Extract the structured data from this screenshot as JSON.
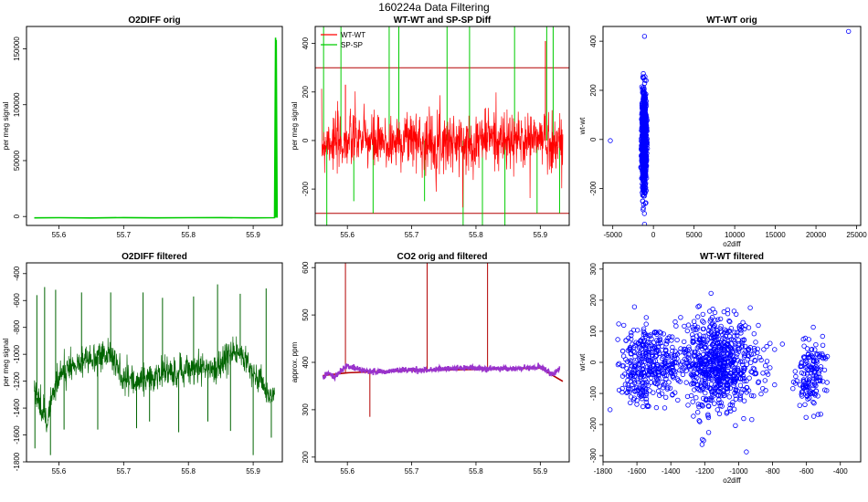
{
  "page_title": "160224a   Data Filtering",
  "colors": {
    "green": "#00cc00",
    "red": "#ff0000",
    "darkred": "#b30000",
    "darkgreen": "#006400",
    "purple": "#9933cc",
    "blue": "#0000ff",
    "black": "#000000"
  },
  "chart_data": [
    {
      "id": "p1",
      "type": "line",
      "title": "O2DIFF orig",
      "xlabel": "",
      "ylabel": "per meg signal",
      "xlim": [
        55.55,
        55.945
      ],
      "ylim": [
        -8000,
        170000
      ],
      "xticks": [
        55.6,
        55.7,
        55.8,
        55.9
      ],
      "yticks": [
        0,
        50000,
        100000,
        150000
      ],
      "series": [
        {
          "color": "green",
          "x": [
            55.562,
            55.6,
            55.65,
            55.7,
            55.75,
            55.8,
            55.85,
            55.9,
            55.933,
            55.9345,
            55.935,
            55.9355,
            55.937
          ],
          "y": [
            -1200,
            -1100,
            -1300,
            -1000,
            -1200,
            -1100,
            -1000,
            -1200,
            -1100,
            160000,
            -1000,
            158000,
            -1100
          ]
        }
      ]
    },
    {
      "id": "p2",
      "type": "line",
      "title": "WT-WT and SP-SP Diff",
      "xlabel": "",
      "ylabel": "per meg signal",
      "xlim": [
        55.55,
        55.945
      ],
      "ylim": [
        -350,
        470
      ],
      "xticks": [
        55.6,
        55.7,
        55.8,
        55.9
      ],
      "yticks": [
        -200,
        0,
        200,
        400
      ],
      "hlines": [
        300,
        -300
      ],
      "legend": {
        "position": "top-left",
        "entries": [
          {
            "name": "WT-WT",
            "color": "red"
          },
          {
            "name": "SP-SP",
            "color": "green"
          }
        ]
      },
      "series": [
        {
          "name": "SP-SP",
          "color": "green",
          "spikes": [
            {
              "x": 55.563,
              "y": 470
            },
            {
              "x": 55.568,
              "y": -350
            },
            {
              "x": 55.59,
              "y": 470
            },
            {
              "x": 55.61,
              "y": -250
            },
            {
              "x": 55.64,
              "y": -300
            },
            {
              "x": 55.665,
              "y": 470
            },
            {
              "x": 55.68,
              "y": 470
            },
            {
              "x": 55.72,
              "y": -250
            },
            {
              "x": 55.755,
              "y": 470
            },
            {
              "x": 55.78,
              "y": -350
            },
            {
              "x": 55.79,
              "y": 470
            },
            {
              "x": 55.81,
              "y": -350
            },
            {
              "x": 55.845,
              "y": -350
            },
            {
              "x": 55.86,
              "y": 470
            },
            {
              "x": 55.895,
              "y": -300
            },
            {
              "x": 55.91,
              "y": 470
            },
            {
              "x": 55.92,
              "y": 470
            },
            {
              "x": 55.93,
              "y": -300
            }
          ]
        },
        {
          "name": "WT-WT",
          "color": "red",
          "x": [
            55.56,
            55.565,
            55.57,
            55.575,
            55.58,
            55.6,
            55.62,
            55.65,
            55.68,
            55.7,
            55.72,
            55.75,
            55.78,
            55.8,
            55.82,
            55.85,
            55.88,
            55.9,
            55.92,
            55.935
          ],
          "y": [
            -20,
            -10,
            10,
            0,
            -15,
            -5,
            10,
            -20,
            0,
            15,
            -10,
            5,
            -20,
            0,
            20,
            -10,
            5,
            10,
            -15,
            -5
          ],
          "noise": 60,
          "spikes": [
            {
              "x": 55.597,
              "y": 230
            },
            {
              "x": 55.908,
              "y": 410
            }
          ]
        }
      ]
    },
    {
      "id": "p3",
      "type": "scatter",
      "title": "WT-WT orig",
      "xlabel": "o2diff",
      "ylabel": "wt-wt",
      "xlim": [
        -6200,
        25500
      ],
      "ylim": [
        -350,
        460
      ],
      "xticks": [
        -5000,
        0,
        5000,
        10000,
        15000,
        20000,
        25000
      ],
      "yticks": [
        -200,
        0,
        200,
        400
      ],
      "series": [
        {
          "color": "blue",
          "cluster": {
            "x": [
              -1500,
              -800
            ],
            "y": [
              -240,
              220
            ],
            "count": 1100
          },
          "points": [
            {
              "x": -5300,
              "y": -5
            },
            {
              "x": 24000,
              "y": 440
            },
            {
              "x": -1100,
              "y": 420
            },
            {
              "x": -1100,
              "y": -345
            },
            {
              "x": -1300,
              "y": 255
            },
            {
              "x": -1000,
              "y": -260
            },
            {
              "x": -1200,
              "y": -230
            },
            {
              "x": -900,
              "y": 240
            }
          ]
        }
      ]
    },
    {
      "id": "p4",
      "type": "line",
      "title": "O2DIFF filtered",
      "xlabel": "",
      "ylabel": "per meg signal",
      "xlim": [
        55.55,
        55.945
      ],
      "ylim": [
        -1800,
        -320
      ],
      "xticks": [
        55.6,
        55.7,
        55.8,
        55.9
      ],
      "yticks": [
        -1800,
        -1600,
        -1400,
        -1200,
        -1000,
        -800,
        -600,
        -400
      ],
      "series": [
        {
          "color": "darkgreen",
          "x": [
            55.562,
            55.57,
            55.58,
            55.59,
            55.6,
            55.62,
            55.64,
            55.66,
            55.68,
            55.69,
            55.7,
            55.72,
            55.74,
            55.76,
            55.78,
            55.8,
            55.82,
            55.84,
            55.86,
            55.88,
            55.9,
            55.915,
            55.925,
            55.933
          ],
          "y": [
            -1260,
            -1350,
            -1500,
            -1300,
            -1150,
            -1080,
            -1050,
            -1020,
            -1000,
            -1100,
            -1180,
            -1200,
            -1170,
            -1130,
            -1140,
            -1120,
            -1090,
            -1130,
            -1000,
            -980,
            -1150,
            -1200,
            -1350,
            -1300
          ],
          "noise": 55,
          "spikes": [
            {
              "x": 55.563,
              "y": -1700
            },
            {
              "x": 55.566,
              "y": -560
            },
            {
              "x": 55.578,
              "y": -500
            },
            {
              "x": 55.587,
              "y": -1750
            },
            {
              "x": 55.595,
              "y": -520
            },
            {
              "x": 55.608,
              "y": -1560
            },
            {
              "x": 55.635,
              "y": -540
            },
            {
              "x": 55.66,
              "y": -1560
            },
            {
              "x": 55.68,
              "y": -540
            },
            {
              "x": 55.72,
              "y": -1550
            },
            {
              "x": 55.73,
              "y": -540
            },
            {
              "x": 55.74,
              "y": -1500
            },
            {
              "x": 55.76,
              "y": -580
            },
            {
              "x": 55.785,
              "y": -1580
            },
            {
              "x": 55.808,
              "y": -570
            },
            {
              "x": 55.83,
              "y": -1500
            },
            {
              "x": 55.845,
              "y": -480
            },
            {
              "x": 55.865,
              "y": -1570
            },
            {
              "x": 55.88,
              "y": -550
            },
            {
              "x": 55.9,
              "y": -1750
            },
            {
              "x": 55.92,
              "y": -510
            },
            {
              "x": 55.928,
              "y": -1620
            }
          ]
        }
      ]
    },
    {
      "id": "p5",
      "type": "line",
      "title": "CO2 orig and filtered",
      "xlabel": "",
      "ylabel": "approx. ppm",
      "xlim": [
        55.55,
        55.945
      ],
      "ylim": [
        190,
        610
      ],
      "xticks": [
        55.6,
        55.7,
        55.8,
        55.9
      ],
      "yticks": [
        200,
        300,
        400,
        500,
        600
      ],
      "series": [
        {
          "color": "darkred",
          "x": [
            55.562,
            55.6,
            55.7,
            55.8,
            55.9,
            55.935
          ],
          "y": [
            372,
            378,
            383,
            385,
            388,
            360
          ],
          "spikes": [
            {
              "x": 55.597,
              "y": 610
            },
            {
              "x": 55.635,
              "y": 285
            },
            {
              "x": 55.724,
              "y": 610
            },
            {
              "x": 55.818,
              "y": 610
            }
          ]
        },
        {
          "color": "purple",
          "x": [
            55.562,
            55.57,
            55.58,
            55.59,
            55.6,
            55.62,
            55.65,
            55.7,
            55.72,
            55.75,
            55.8,
            55.85,
            55.9,
            55.92,
            55.93
          ],
          "y": [
            370,
            378,
            368,
            382,
            392,
            383,
            380,
            384,
            383,
            386,
            388,
            386,
            390,
            375,
            385
          ],
          "noise": 3
        }
      ]
    },
    {
      "id": "p6",
      "type": "scatter",
      "title": "WT-WT filtered",
      "xlabel": "o2diff",
      "ylabel": "wt-wt",
      "xlim": [
        -1800,
        -280
      ],
      "ylim": [
        -320,
        320
      ],
      "xticks": [
        -1800,
        -1600,
        -1400,
        -1200,
        -1000,
        -800,
        -600,
        -400
      ],
      "yticks": [
        -300,
        -200,
        -100,
        0,
        100,
        200,
        300
      ],
      "series": [
        {
          "color": "blue",
          "clusters": [
            {
              "cx": -1580,
              "cy": -20,
              "sx": 60,
              "sy": 70,
              "count": 260
            },
            {
              "cx": -1430,
              "cy": -10,
              "sx": 50,
              "sy": 45,
              "count": 120
            },
            {
              "cx": -1130,
              "cy": 0,
              "sx": 100,
              "sy": 75,
              "count": 700
            },
            {
              "cx": -570,
              "cy": -30,
              "sx": 45,
              "sy": 55,
              "count": 150
            },
            {
              "cx": -860,
              "cy": -10,
              "sx": 40,
              "sy": 60,
              "count": 25
            }
          ]
        }
      ]
    }
  ]
}
